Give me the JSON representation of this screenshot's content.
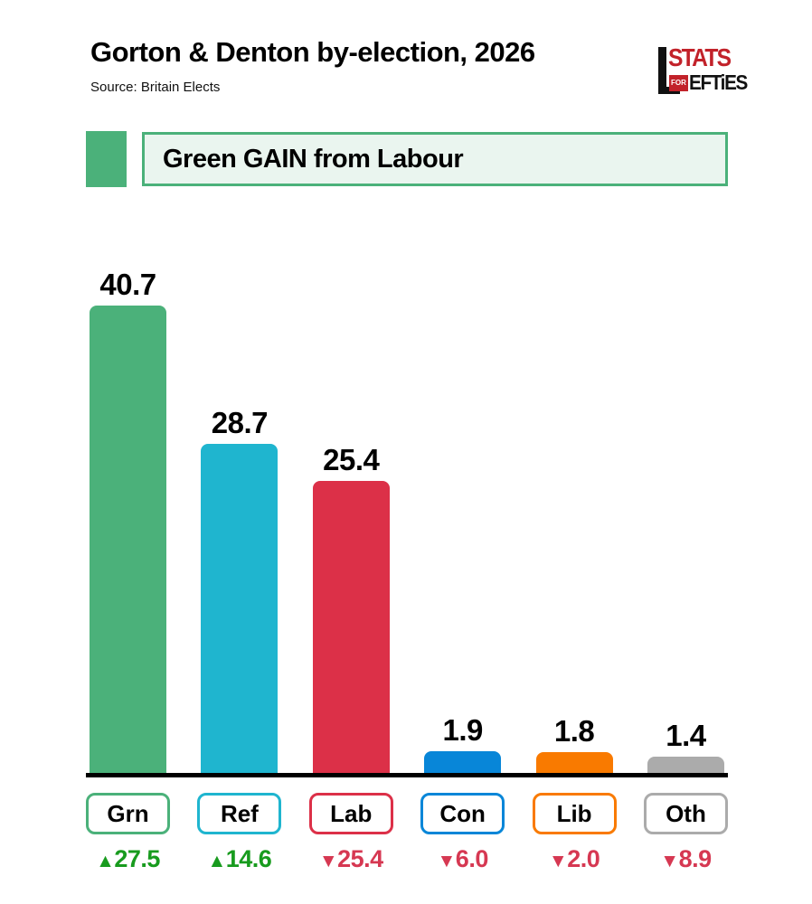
{
  "header": {
    "title": "Gorton & Denton by-election, 2026",
    "source": "Source: Britain Elects"
  },
  "logo": {
    "name": "stats-for-lefties",
    "line1": "STATS",
    "for": "FOR",
    "line2": "EFTiES",
    "red": "#c2222a",
    "black": "#111111"
  },
  "banner": {
    "text": "Green GAIN from Labour",
    "accent_green": "#4bb17a",
    "fill": "#eaf5ef"
  },
  "chart_data": {
    "type": "bar",
    "title": "Gorton & Denton by-election, 2026",
    "subtitle": "Source: Britain Elects",
    "categories": [
      "Grn",
      "Ref",
      "Lab",
      "Con",
      "Lib",
      "Oth"
    ],
    "values": [
      40.7,
      28.7,
      25.4,
      1.9,
      1.8,
      1.4
    ],
    "value_labels": [
      "40.7",
      "28.7",
      "25.4",
      "1.9",
      "1.8",
      "1.4"
    ],
    "bar_colors": [
      "#4bb17a",
      "#1fb5cf",
      "#dc3048",
      "#0886d8",
      "#f97a00",
      "#ababab"
    ],
    "changes": [
      {
        "direction": "up",
        "arrow": "▲",
        "value": "27.5"
      },
      {
        "direction": "up",
        "arrow": "▲",
        "value": "14.6"
      },
      {
        "direction": "down",
        "arrow": "▼",
        "value": "25.4"
      },
      {
        "direction": "down",
        "arrow": "▼",
        "value": "6.0"
      },
      {
        "direction": "down",
        "arrow": "▼",
        "value": "2.0"
      },
      {
        "direction": "down",
        "arrow": "▼",
        "value": "8.9"
      }
    ],
    "xlabel": "",
    "ylabel": "",
    "ylim": [
      0,
      45
    ],
    "grid": false,
    "legend": "none",
    "colors": {
      "change_up_green": "#189b1e",
      "change_down_red": "#d63852",
      "axis_black": "#000000"
    }
  }
}
